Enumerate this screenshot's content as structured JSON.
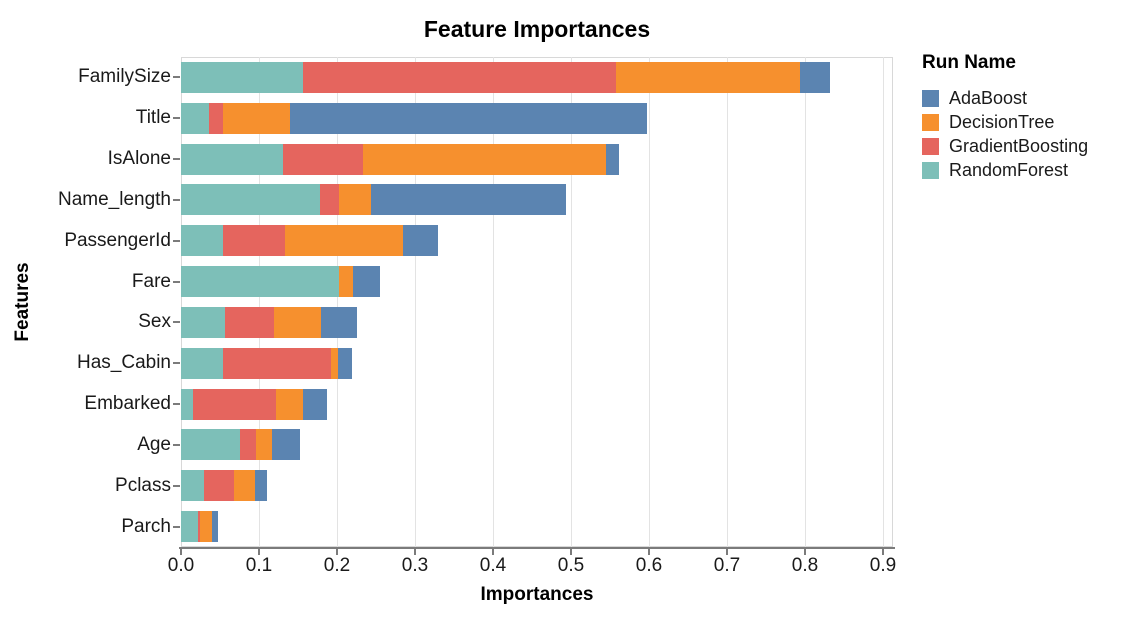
{
  "chart_data": {
    "type": "bar",
    "orientation": "horizontal",
    "stacked": true,
    "title": "Feature Importances",
    "xlabel": "Importances",
    "ylabel": "Features",
    "grid": true,
    "xlim": [
      0,
      0.913
    ],
    "x_ticks": [
      0.0,
      0.1,
      0.2,
      0.3,
      0.4,
      0.5,
      0.6,
      0.7,
      0.8,
      0.9
    ],
    "categories": [
      "FamilySize",
      "Title",
      "IsAlone",
      "Name_length",
      "PassengerId",
      "Fare",
      "Sex",
      "Has_Cabin",
      "Embarked",
      "Age",
      "Pclass",
      "Parch"
    ],
    "stack_order": [
      "RandomForest",
      "GradientBoosting",
      "DecisionTree",
      "AdaBoost"
    ],
    "series": [
      {
        "name": "AdaBoost",
        "color": "#5B84B1",
        "values": [
          0.039,
          0.458,
          0.017,
          0.249,
          0.045,
          0.035,
          0.047,
          0.018,
          0.031,
          0.035,
          0.015,
          0.008
        ]
      },
      {
        "name": "DecisionTree",
        "color": "#F6902E",
        "values": [
          0.235,
          0.086,
          0.312,
          0.041,
          0.152,
          0.017,
          0.06,
          0.009,
          0.034,
          0.021,
          0.027,
          0.016
        ]
      },
      {
        "name": "GradientBoosting",
        "color": "#E5655E",
        "values": [
          0.401,
          0.018,
          0.102,
          0.025,
          0.079,
          0.0,
          0.062,
          0.138,
          0.106,
          0.02,
          0.038,
          0.002
        ]
      },
      {
        "name": "RandomForest",
        "color": "#7DBFB8",
        "values": [
          0.157,
          0.036,
          0.131,
          0.178,
          0.054,
          0.203,
          0.057,
          0.054,
          0.016,
          0.076,
          0.03,
          0.022
        ]
      }
    ],
    "legend": {
      "title": "Run Name",
      "position": "right",
      "entries": [
        "AdaBoost",
        "DecisionTree",
        "GradientBoosting",
        "RandomForest"
      ]
    }
  },
  "style_colors": {
    "axis_line": "#7b7b7b",
    "gridline": "#e3e3e3",
    "plot_frame": "#d8d8d8",
    "tick_text": "#1a1a1a"
  }
}
